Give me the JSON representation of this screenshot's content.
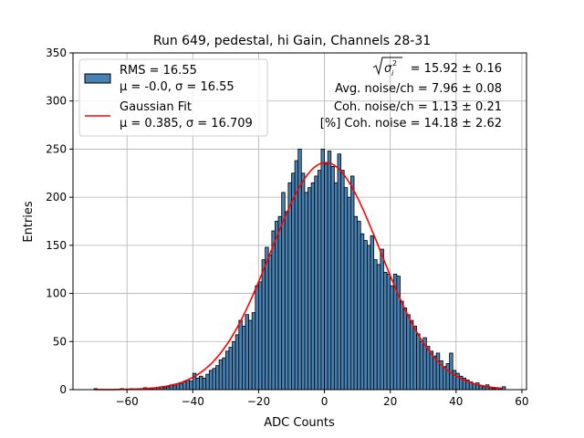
{
  "chart_data": {
    "type": "bar",
    "title": "Run 649, pedestal, hi Gain, Channels 28-31",
    "xlabel": "ADC Counts",
    "ylabel": "Entries",
    "xlim": [
      -76.4,
      61.4
    ],
    "ylim": [
      0,
      350
    ],
    "xticks": [
      -60,
      -40,
      -20,
      0,
      20,
      40,
      60
    ],
    "yticks": [
      0,
      50,
      100,
      150,
      200,
      250,
      300,
      350
    ],
    "grid": true,
    "legend_placement": "upper-left",
    "bin_start": -70,
    "bin_width": 1,
    "counts": [
      1,
      0,
      0,
      0,
      0,
      0,
      0,
      0,
      1,
      0,
      0,
      1,
      0,
      1,
      1,
      2,
      1,
      1,
      2,
      2,
      3,
      2,
      3,
      5,
      4,
      6,
      6,
      8,
      10,
      9,
      17,
      12,
      14,
      12,
      16,
      20,
      22,
      25,
      31,
      33,
      40,
      44,
      50,
      57,
      72,
      66,
      78,
      72,
      80,
      108,
      112,
      135,
      148,
      140,
      165,
      175,
      180,
      205,
      185,
      215,
      225,
      238,
      250,
      225,
      205,
      210,
      215,
      222,
      228,
      250,
      235,
      248,
      232,
      215,
      245,
      228,
      210,
      200,
      222,
      180,
      175,
      162,
      155,
      150,
      160,
      135,
      130,
      146,
      122,
      120,
      108,
      120,
      118,
      92,
      85,
      78,
      72,
      66,
      58,
      50,
      54,
      45,
      40,
      35,
      38,
      30,
      24,
      27,
      38,
      20,
      17,
      14,
      12,
      10,
      8,
      6,
      7,
      4,
      3,
      5,
      2,
      1,
      2,
      1,
      3
    ],
    "fit": {
      "mu": 0.385,
      "sigma": 16.709,
      "amplitude": 236,
      "x_range": [
        -70,
        54
      ]
    },
    "series": [
      {
        "name": "RMS = 16.55",
        "name_line2": "μ = -0.0, σ = 16.55",
        "type": "histogram"
      },
      {
        "name": "Gaussian Fit",
        "name_line2": "μ = 0.385, σ = 16.709",
        "type": "line"
      }
    ],
    "annotations": {
      "sqrt_sigma": "= 15.92 ± 0.16",
      "avg_noise": "Avg. noise/ch = 7.96 ± 0.08",
      "coh_noise": "Coh. noise/ch = 1.13 ± 0.21",
      "pct_coh_noise": "[%] Coh. noise = 14.18 ± 2.62"
    },
    "colors": {
      "bar": "#4682b4",
      "bar_edge": "#000000",
      "fit": "#ff0000",
      "grid": "#b0b0b0"
    }
  }
}
